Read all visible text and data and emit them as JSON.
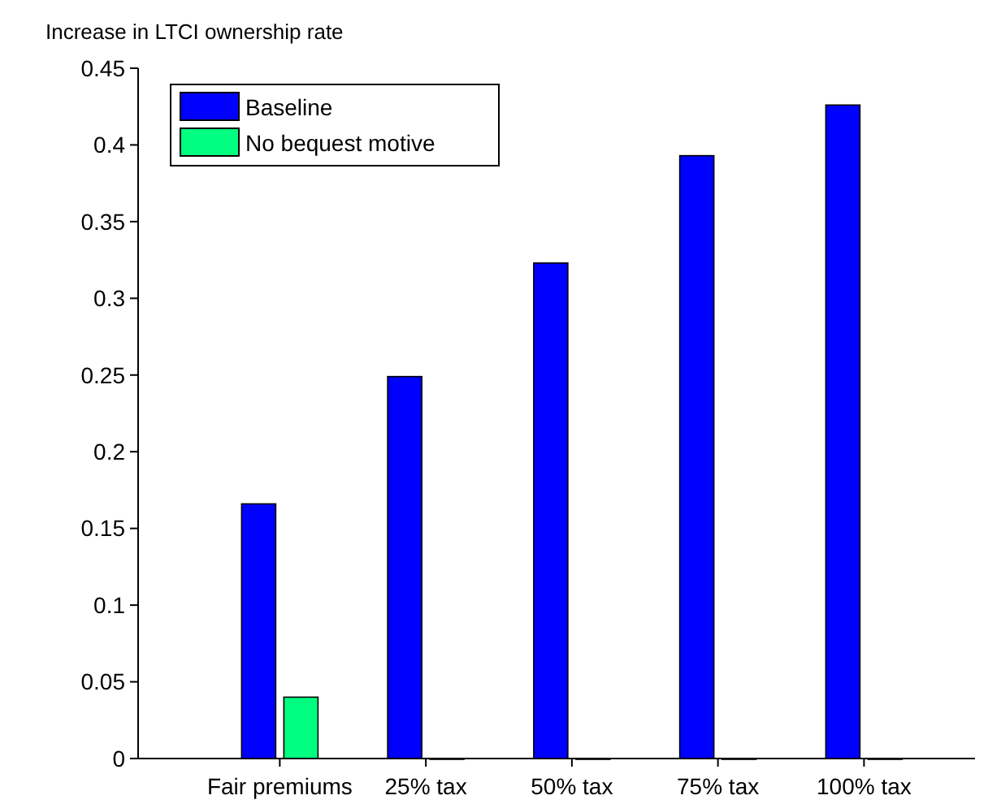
{
  "chart_data": {
    "type": "bar",
    "ylabel": "Increase in LTCI ownership rate",
    "categories": [
      "Fair premiums",
      "25% tax",
      "50% tax",
      "75% tax",
      "100% tax"
    ],
    "series": [
      {
        "name": "Baseline",
        "color": "#0000ff",
        "values": [
          0.166,
          0.249,
          0.323,
          0.393,
          0.426
        ]
      },
      {
        "name": "No bequest motive",
        "color": "#00ff80",
        "values": [
          0.04,
          0,
          0,
          0,
          0
        ]
      }
    ],
    "ylim": [
      0,
      0.45
    ],
    "yticks": [
      0,
      0.05,
      0.1,
      0.15,
      0.2,
      0.25,
      0.3,
      0.35,
      0.4,
      0.45
    ],
    "legend": "top left",
    "grid": false
  }
}
